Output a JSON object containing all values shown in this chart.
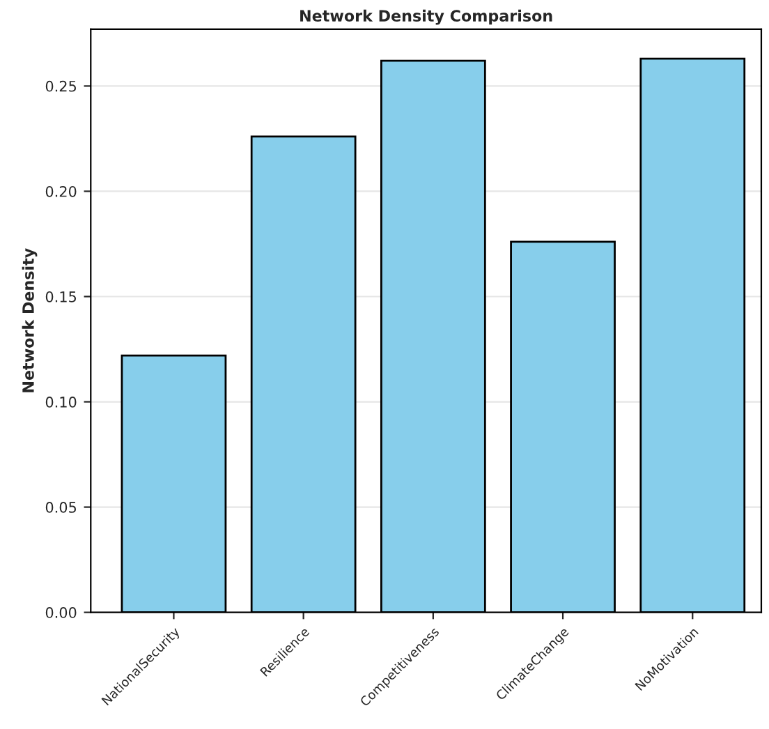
{
  "chart_data": {
    "type": "bar",
    "title": "Network Density Comparison",
    "ylabel": "Network Density",
    "categories": [
      "NationalSecurity",
      "Resilience",
      "Competitiveness",
      "ClimateChange",
      "NoMotivation"
    ],
    "values": [
      0.122,
      0.226,
      0.262,
      0.176,
      0.263
    ],
    "color": "#87ceeb",
    "ylim": [
      0,
      0.277
    ],
    "yticks": [
      {
        "value": 0,
        "label": "0.00"
      },
      {
        "value": 0.05,
        "label": "0.05"
      },
      {
        "value": 0.1,
        "label": "0.10"
      },
      {
        "value": 0.15,
        "label": "0.15"
      },
      {
        "value": 0.2,
        "label": "0.20"
      },
      {
        "value": 0.25,
        "label": "0.25"
      }
    ],
    "grid": "y"
  }
}
